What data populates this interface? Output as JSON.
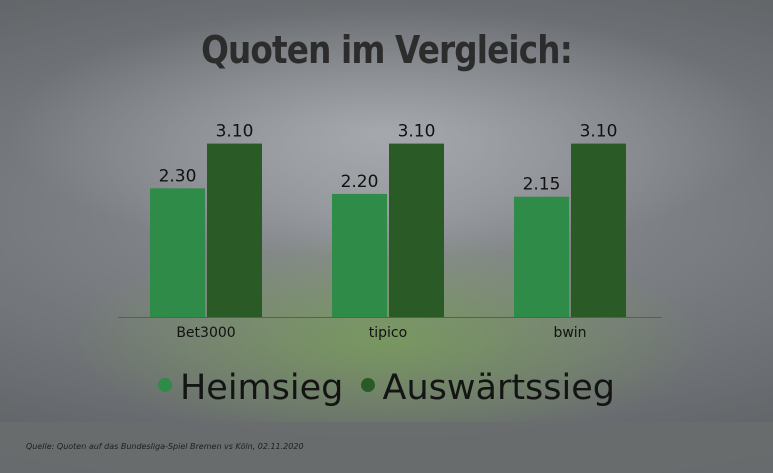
{
  "title": "Quoten im Vergleich:",
  "source": "Quelle: Quoten auf das Bundesliga-Spiel Bremen vs Köln, 02.11.2020",
  "colors": {
    "heimsieg": "#2e8b48",
    "auswaertssieg": "#2a5a26"
  },
  "chart_data": {
    "type": "bar",
    "title": "Quoten im Vergleich:",
    "xlabel": "",
    "ylabel": "",
    "ylim": [
      0,
      3.2
    ],
    "grid": false,
    "legend_position": "bottom",
    "categories": [
      "Bet3000",
      "tipico",
      "bwin"
    ],
    "series": [
      {
        "name": "Heimsieg",
        "values": [
          2.3,
          2.2,
          2.15
        ],
        "labels": [
          "2.30",
          "2.20",
          "2.15"
        ]
      },
      {
        "name": "Auswärtssieg",
        "values": [
          3.1,
          3.1,
          3.1
        ],
        "labels": [
          "3.10",
          "3.10",
          "3.10"
        ]
      }
    ]
  }
}
